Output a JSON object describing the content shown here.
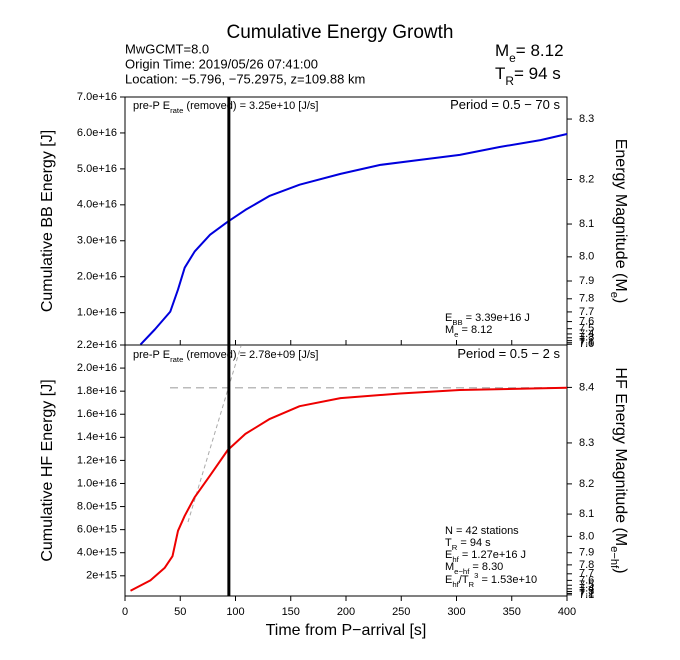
{
  "header": {
    "title": "Cumulative Energy Growth",
    "info": [
      "MwGCMT=8.0",
      "Origin Time: 2019/05/26 07:41:00",
      "Location: −5.796, −75.2975, z=109.88 km"
    ],
    "me": [
      {
        "t": "M"
      },
      {
        "t": "e",
        "s": "sub"
      },
      {
        "t": "= 8.12"
      }
    ],
    "tr": [
      {
        "t": "T"
      },
      {
        "t": "R",
        "s": "sub"
      },
      {
        "t": "= 94 s"
      }
    ]
  },
  "chart_data": [
    {
      "type": "line",
      "ylabel": [
        {
          "t": "Cumulative BB Energy [J]"
        }
      ],
      "y2label": [
        {
          "t": "Energy Magnitude (M"
        },
        {
          "t": "e",
          "s": "sub"
        },
        {
          "t": ")"
        }
      ],
      "x": [
        14,
        27,
        41,
        48,
        54,
        63,
        77,
        93,
        109,
        131,
        158,
        195,
        231,
        267,
        303,
        339,
        376,
        400
      ],
      "series": [
        {
          "color": "#0000dd",
          "values": [
            1100000000000000.0,
            5300000000000000.0,
            1.03e+16,
            1.64e+16,
            2.25e+16,
            2.7e+16,
            3.17e+16,
            3.53e+16,
            3.86e+16,
            4.25e+16,
            4.56e+16,
            4.86e+16,
            5.11e+16,
            5.25e+16,
            5.39e+16,
            5.61e+16,
            5.8e+16,
            5.97e+16
          ]
        }
      ],
      "xlim": [
        0,
        400
      ],
      "xticks": [
        0,
        50,
        100,
        150,
        200,
        250,
        300,
        350,
        400
      ],
      "ylim": [
        1000000000000000.0,
        7e+16
      ],
      "yticks": [
        {
          "value": 1e+16,
          "label": "1.0e+16"
        },
        {
          "value": 2e+16,
          "label": "2.0e+16"
        },
        {
          "value": 3e+16,
          "label": "3.0e+16"
        },
        {
          "value": 4e+16,
          "label": "4.0e+16"
        },
        {
          "value": 5e+16,
          "label": "5.0e+16"
        },
        {
          "value": 6e+16,
          "label": "6.0e+16"
        },
        {
          "value": 7e+16,
          "label": "7.0e+16"
        }
      ],
      "y2lim": [
        6.94,
        8.33
      ],
      "y2ticks": [
        8.3,
        8.2,
        8.1,
        {
          "value": 8,
          "label": "8.0"
        },
        7.9,
        7.8,
        7.7,
        7.6,
        7.5,
        7.4,
        7.3,
        7.2,
        7.1,
        {
          "value": 7,
          "label": "7.0"
        }
      ],
      "vline": 94,
      "annotations": [
        [
          {
            "t": "pre-P E"
          },
          {
            "t": "rate",
            "s": "sub"
          },
          {
            "t": " (removed) = 3.25e+10 [J/s]"
          }
        ],
        [
          {
            "t": "Period = 0.5 − 70 s"
          }
        ],
        [
          {
            "t": "E"
          },
          {
            "t": "BB",
            "s": "sub"
          },
          {
            "t": " = 3.39e+16 J"
          }
        ],
        [
          {
            "t": "M"
          },
          {
            "t": "e",
            "s": "sub"
          },
          {
            "t": " = 8.12"
          }
        ]
      ]
    },
    {
      "type": "line",
      "ylabel": [
        {
          "t": "Cumulative HF Energy [J]"
        }
      ],
      "y2label": [
        {
          "t": "HF Energy Magnitude (M"
        },
        {
          "t": "e−hf",
          "s": "sub"
        },
        {
          "t": ")"
        }
      ],
      "xlabel": "Time from P−arrival [s]",
      "x": [
        5,
        23,
        36,
        43,
        48,
        54,
        63,
        77,
        93,
        109,
        131,
        158,
        195,
        249,
        303,
        400
      ],
      "series": [
        {
          "color": "#ee0000",
          "values": [
            700000000000000.0,
            1600000000000000.0,
            2700000000000000.0,
            3700000000000000.0,
            5900000000000000.0,
            7200000000000000.0,
            8800000000000000.0,
            1.07e+16,
            1.29e+16,
            1.43e+16,
            1.56e+16,
            1.67e+16,
            1.74e+16,
            1.78e+16,
            1.81e+16,
            1.83e+16
          ]
        }
      ],
      "xlim": [
        0,
        400
      ],
      "xticks": [
        0,
        50,
        100,
        150,
        200,
        250,
        300,
        350,
        400
      ],
      "ylim": [
        250000000000000.0,
        2.2e+16
      ],
      "yticks": [
        {
          "value": 2000000000000000.0,
          "label": "2e+15"
        },
        {
          "value": 4000000000000000.0,
          "label": "4.0e+15"
        },
        {
          "value": 6000000000000000.0,
          "label": "6.0e+15"
        },
        {
          "value": 8000000000000000.0,
          "label": "8.0e+15"
        },
        {
          "value": 1e+16,
          "label": "1.0e+16"
        },
        {
          "value": 1.2e+16,
          "label": "1.2e+16"
        },
        {
          "value": 1.4e+16,
          "label": "1.4e+16"
        },
        {
          "value": 1.6e+16,
          "label": "1.6e+16"
        },
        {
          "value": 1.8e+16,
          "label": "1.8e+16"
        },
        {
          "value": 2e+16,
          "label": "2.0e+16"
        },
        {
          "value": 2.2e+16,
          "label": "2.2e+16"
        }
      ],
      "y2lim": [
        6.99,
        8.46
      ],
      "y2ticks": [
        8.4,
        8.3,
        8.2,
        8.1,
        {
          "value": 8,
          "label": "8.0"
        },
        7.9,
        7.8,
        7.7,
        7.6,
        7.5,
        7.4,
        7.3,
        7.2,
        7.1
      ],
      "vline": 94,
      "hline": 1.83e+16,
      "annotations": [
        [
          {
            "t": "pre-P E"
          },
          {
            "t": "rate",
            "s": "sub"
          },
          {
            "t": " (removed) = 2.78e+09 [J/s]"
          }
        ],
        [
          {
            "t": "Period = 0.5 − 2 s"
          }
        ],
        [
          {
            "t": "N = 42 stations"
          }
        ],
        [
          {
            "t": "T"
          },
          {
            "t": "R",
            "s": "sub"
          },
          {
            "t": " = 94  s"
          }
        ],
        [
          {
            "t": "E"
          },
          {
            "t": "hf",
            "s": "sub"
          },
          {
            "t": " = 1.27e+16 J"
          }
        ],
        [
          {
            "t": "M"
          },
          {
            "t": "e−hf",
            "s": "sub"
          },
          {
            "t": " = 8.30"
          }
        ],
        [
          {
            "t": "E"
          },
          {
            "t": "hf",
            "s": "sub"
          },
          {
            "t": "/T"
          },
          {
            "t": "R",
            "s": "sub"
          },
          {
            "t": "3",
            "s": "sup"
          },
          {
            "t": " =  1.53e+10"
          }
        ]
      ]
    }
  ]
}
